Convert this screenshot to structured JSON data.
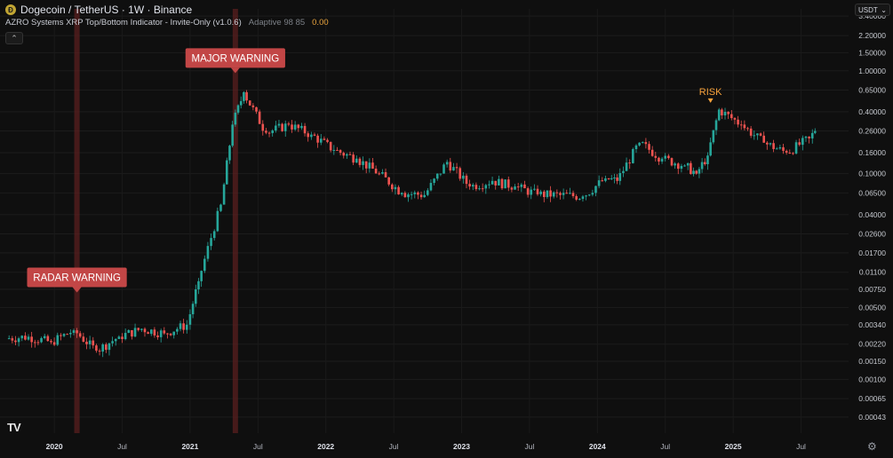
{
  "header": {
    "symbol": "Dogecoin / TetherUS · 1W · Binance",
    "coin_glyph": "Ð"
  },
  "indicator": {
    "name": "AZRO Systems XRP Top/Bottom Indicator - Invite-Only (v1.0.6)",
    "params": "Adaptive 98 85",
    "value": "0.00"
  },
  "controls": {
    "collapse_glyph": "⌃",
    "currency": "USDT",
    "currency_caret": "⌄",
    "logo": "TV",
    "settings_glyph": "⚙"
  },
  "chart_data": {
    "type": "candlestick",
    "y_scale": "log",
    "ylim": [
      0.0003,
      4.0
    ],
    "y_ticks": [
      "3.40000",
      "2.20000",
      "1.50000",
      "1.00000",
      "0.65000",
      "0.40000",
      "0.26000",
      "0.16000",
      "0.10000",
      "0.06500",
      "0.04000",
      "0.02600",
      "0.01700",
      "0.01100",
      "0.00750",
      "0.00500",
      "0.00340",
      "0.00220",
      "0.00150",
      "0.00100",
      "0.00065",
      "0.00043"
    ],
    "x_ticks": [
      "2020",
      "Jul",
      "2021",
      "Jul",
      "2022",
      "Jul",
      "2023",
      "Jul",
      "2024",
      "Jul",
      "2025",
      "Jul"
    ],
    "colors": {
      "up": "#26a69a",
      "down": "#ef5350",
      "label_bg": "#c24646",
      "risk": "#f7a23b",
      "band": "#5a1f1f"
    },
    "series": [
      {
        "x": "2019-09",
        "o": 0.0025,
        "c": 0.0026
      },
      {
        "x": "2019-11",
        "o": 0.0026,
        "c": 0.0023
      },
      {
        "x": "2020-01",
        "o": 0.0023,
        "c": 0.003
      },
      {
        "x": "2020-03",
        "o": 0.003,
        "c": 0.0019
      },
      {
        "x": "2020-05",
        "o": 0.0019,
        "c": 0.0026
      },
      {
        "x": "2020-07",
        "o": 0.0026,
        "c": 0.0031
      },
      {
        "x": "2020-09",
        "o": 0.0031,
        "c": 0.0028
      },
      {
        "x": "2020-11",
        "o": 0.0028,
        "c": 0.0034
      },
      {
        "x": "2021-01",
        "o": 0.0034,
        "c": 0.009
      },
      {
        "x": "2021-02",
        "o": 0.009,
        "c": 0.05
      },
      {
        "x": "2021-04",
        "o": 0.05,
        "c": 0.3
      },
      {
        "x": "2021-05",
        "o": 0.3,
        "c": 0.62
      },
      {
        "x": "2021-06",
        "o": 0.62,
        "c": 0.25
      },
      {
        "x": "2021-08",
        "o": 0.25,
        "c": 0.3
      },
      {
        "x": "2021-10",
        "o": 0.3,
        "c": 0.24
      },
      {
        "x": "2021-12",
        "o": 0.24,
        "c": 0.17
      },
      {
        "x": "2022-02",
        "o": 0.17,
        "c": 0.14
      },
      {
        "x": "2022-04",
        "o": 0.14,
        "c": 0.1
      },
      {
        "x": "2022-06",
        "o": 0.1,
        "c": 0.065
      },
      {
        "x": "2022-08",
        "o": 0.065,
        "c": 0.062
      },
      {
        "x": "2022-10",
        "o": 0.062,
        "c": 0.13
      },
      {
        "x": "2022-12",
        "o": 0.13,
        "c": 0.075
      },
      {
        "x": "2023-02",
        "o": 0.075,
        "c": 0.085
      },
      {
        "x": "2023-04",
        "o": 0.085,
        "c": 0.075
      },
      {
        "x": "2023-06",
        "o": 0.075,
        "c": 0.063
      },
      {
        "x": "2023-08",
        "o": 0.063,
        "c": 0.062
      },
      {
        "x": "2023-10",
        "o": 0.062,
        "c": 0.06
      },
      {
        "x": "2023-12",
        "o": 0.06,
        "c": 0.09
      },
      {
        "x": "2024-02",
        "o": 0.09,
        "c": 0.085
      },
      {
        "x": "2024-03",
        "o": 0.085,
        "c": 0.2
      },
      {
        "x": "2024-05",
        "o": 0.2,
        "c": 0.14
      },
      {
        "x": "2024-07",
        "o": 0.14,
        "c": 0.12
      },
      {
        "x": "2024-09",
        "o": 0.12,
        "c": 0.1
      },
      {
        "x": "2024-10",
        "o": 0.1,
        "c": 0.15
      },
      {
        "x": "2024-11",
        "o": 0.15,
        "c": 0.42
      },
      {
        "x": "2024-12",
        "o": 0.42,
        "c": 0.3
      },
      {
        "x": "2025-02",
        "o": 0.3,
        "c": 0.2
      },
      {
        "x": "2025-04",
        "o": 0.2,
        "c": 0.16
      },
      {
        "x": "2025-06",
        "o": 0.16,
        "c": 0.22
      },
      {
        "x": "2025-08",
        "o": 0.22,
        "c": 0.26
      }
    ],
    "annotations": [
      {
        "text": "RADAR WARNING",
        "x": "2020-03",
        "y": 0.007,
        "style": "label-down"
      },
      {
        "text": "MAJOR WARNING",
        "x": "2021-05",
        "y": 0.95,
        "style": "label-down"
      },
      {
        "text": "RISK",
        "x": "2024-11",
        "y": 0.46,
        "style": "text-arrow"
      }
    ],
    "warning_bands": [
      "2020-03",
      "2021-05"
    ],
    "grid": true,
    "legend": "none"
  }
}
